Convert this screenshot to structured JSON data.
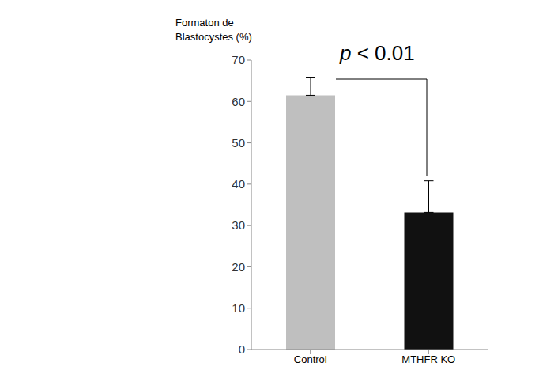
{
  "chart_data": {
    "type": "bar",
    "ylabel": [
      "Formaton de",
      "Blastocystes (%)"
    ],
    "annotation": "p < 0.01",
    "categories": [
      "Control",
      "MTHFR KO"
    ],
    "values": [
      61.5,
      33.2
    ],
    "errors": [
      4.2,
      7.6
    ],
    "colors": [
      "#bfbfbf",
      "#111111"
    ],
    "ylim": [
      0,
      70
    ],
    "yticks": [
      0,
      10,
      20,
      30,
      40,
      50,
      60,
      70
    ],
    "grid": false
  }
}
